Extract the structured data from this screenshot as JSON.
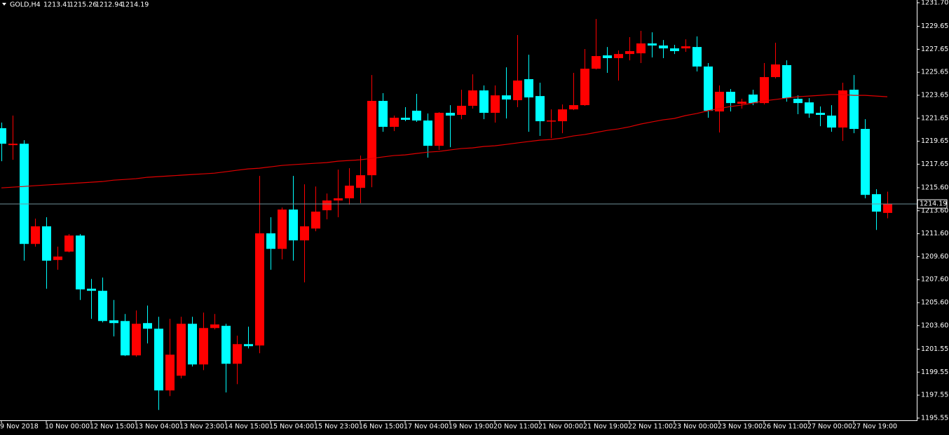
{
  "chart_data": {
    "type": "candlestick",
    "symbol": "GOLD,H4",
    "categories": [
      "9 Nov 2018",
      null,
      null,
      null,
      "10 Nov 00:00",
      null,
      null,
      null,
      "12 Nov 15:00",
      null,
      null,
      null,
      "13 Nov 04:00",
      null,
      null,
      null,
      "13 Nov 23:00",
      null,
      null,
      null,
      "14 Nov 15:00",
      null,
      null,
      null,
      "15 Nov 04:00",
      null,
      null,
      null,
      "15 Nov 23:00",
      null,
      null,
      null,
      "16 Nov 15:00",
      null,
      null,
      null,
      "17 Nov 04:00",
      null,
      null,
      null,
      "19 Nov 19:00",
      null,
      null,
      null,
      "20 Nov 11:00",
      null,
      null,
      null,
      "21 Nov 00:00",
      null,
      null,
      null,
      "21 Nov 19:00",
      null,
      null,
      null,
      "22 Nov 11:00",
      null,
      null,
      null,
      "23 Nov 00:00",
      null,
      null,
      null,
      "23 Nov 19:00",
      null,
      null,
      null,
      "26 Nov 11:00",
      null,
      null,
      null,
      "27 Nov 00:00",
      null,
      null,
      null,
      "27 Nov 19:00",
      null,
      null,
      null
    ],
    "open": [
      1220.78,
      1219.31,
      1219.43,
      1210.71,
      1212.24,
      1209.31,
      1210.04,
      1211.44,
      1206.81,
      1206.63,
      1204.06,
      1204.0,
      1201.01,
      1203.82,
      1203.33,
      1197.96,
      1199.24,
      1203.76,
      1200.22,
      1203.39,
      1203.58,
      1200.28,
      1201.99,
      1201.87,
      1211.63,
      1210.28,
      1213.7,
      1211.02,
      1212.05,
      1213.64,
      1214.49,
      1214.68,
      1215.59,
      1216.69,
      1223.16,
      1220.9,
      1221.69,
      1222.3,
      1221.45,
      1219.25,
      1222.12,
      1221.94,
      1222.73,
      1224.07,
      1222.12,
      1223.64,
      1223.22,
      1225.05,
      1223.58,
      1221.39,
      1221.39,
      1222.42,
      1222.79,
      1225.96,
      1227.12,
      1226.88,
      1227.24,
      1227.3,
      1228.16,
      1227.98,
      1227.73,
      1227.73,
      1227.85,
      1226.15,
      1222.24,
      1223.95,
      1222.91,
      1223.71,
      1222.97,
      1225.23,
      1226.27,
      1223.34,
      1223.03,
      1222.12,
      1221.88,
      1220.84,
      1224.13,
      1220.72,
      1215.04,
      1213.41
    ],
    "high": [
      1221.27,
      1221.88,
      1219.74,
      1212.91,
      1213.03,
      1210.47,
      1211.57,
      1211.57,
      1207.66,
      1207.78,
      1205.83,
      1204.61,
      1204.92,
      1205.34,
      1204.37,
      1204.19,
      1204.37,
      1204.37,
      1204.73,
      1204.61,
      1203.76,
      1202.72,
      1203.51,
      1216.63,
      1213.03,
      1213.88,
      1216.63,
      1215.9,
      1215.71,
      1215.1,
      1217.18,
      1217.3,
      1218.4,
      1225.41,
      1223.83,
      1221.88,
      1222.61,
      1223.77,
      1222.06,
      1222.18,
      1222.79,
      1224.13,
      1225.47,
      1224.5,
      1224.5,
      1226.08,
      1228.89,
      1227.18,
      1224.74,
      1222.42,
      1222.85,
      1225.6,
      1227.67,
      1230.29,
      1227.85,
      1227.55,
      1228.71,
      1229.26,
      1229.13,
      1228.46,
      1228.04,
      1228.52,
      1228.77,
      1226.45,
      1224.5,
      1224.19,
      1223.34,
      1224.13,
      1226.45,
      1228.22,
      1226.69,
      1223.64,
      1223.4,
      1222.67,
      1222.79,
      1224.74,
      1225.41,
      1221.57,
      1215.47,
      1215.26
    ],
    "low": [
      1217.91,
      1218.03,
      1209.25,
      1210.47,
      1206.81,
      1208.46,
      1209.98,
      1205.83,
      1204.19,
      1203.88,
      1202.66,
      1200.95,
      1200.89,
      1202.05,
      1196.26,
      1197.47,
      1199.0,
      1200.04,
      1199.73,
      1203.27,
      1197.78,
      1198.51,
      1201.62,
      1201.2,
      1208.46,
      1209.37,
      1209.25,
      1207.36,
      1211.81,
      1212.85,
      1213.03,
      1214.13,
      1214.25,
      1215.65,
      1220.47,
      1220.53,
      1221.39,
      1221.33,
      1218.22,
      1218.89,
      1219.13,
      1221.57,
      1222.49,
      1221.57,
      1221.27,
      1221.63,
      1222.61,
      1220.47,
      1220.11,
      1219.92,
      1220.35,
      1222.36,
      1222.73,
      1225.9,
      1225.6,
      1224.93,
      1226.69,
      1226.45,
      1226.94,
      1226.88,
      1227.24,
      1227.43,
      1225.72,
      1221.69,
      1220.41,
      1222.24,
      1222.49,
      1222.79,
      1222.85,
      1225.11,
      1223.09,
      1222.0,
      1221.69,
      1220.96,
      1220.47,
      1219.68,
      1220.35,
      1214.68,
      1211.93,
      1212.94
    ],
    "close": [
      1219.43,
      1219.43,
      1210.71,
      1212.24,
      1209.25,
      1209.61,
      1211.44,
      1206.75,
      1206.63,
      1204.0,
      1203.82,
      1201.01,
      1203.76,
      1203.33,
      1197.96,
      1201.07,
      1203.76,
      1200.22,
      1203.39,
      1203.7,
      1200.28,
      1201.99,
      1201.81,
      1211.63,
      1210.28,
      1213.7,
      1211.02,
      1212.24,
      1213.52,
      1214.49,
      1214.68,
      1215.78,
      1216.69,
      1223.16,
      1220.9,
      1221.69,
      1221.51,
      1221.45,
      1219.25,
      1222.12,
      1221.88,
      1222.73,
      1224.07,
      1222.12,
      1223.64,
      1223.28,
      1224.93,
      1223.46,
      1221.39,
      1221.45,
      1222.42,
      1222.79,
      1225.96,
      1227.06,
      1226.88,
      1227.24,
      1227.49,
      1228.16,
      1227.98,
      1227.73,
      1227.49,
      1227.91,
      1226.15,
      1222.3,
      1223.95,
      1222.97,
      1223.09,
      1222.97,
      1225.23,
      1226.33,
      1223.4,
      1222.97,
      1222.06,
      1221.94,
      1220.84,
      1224.07,
      1220.72,
      1214.98,
      1213.52,
      1214.19
    ],
    "moving_average": {
      "color": "#e00000",
      "values": [
        1215.59,
        1215.65,
        1215.71,
        1215.78,
        1215.84,
        1215.9,
        1215.96,
        1216.02,
        1216.08,
        1216.14,
        1216.26,
        1216.32,
        1216.39,
        1216.51,
        1216.57,
        1216.63,
        1216.69,
        1216.75,
        1216.81,
        1216.87,
        1216.99,
        1217.12,
        1217.24,
        1217.3,
        1217.42,
        1217.54,
        1217.61,
        1217.67,
        1217.73,
        1217.79,
        1217.91,
        1217.97,
        1218.03,
        1218.15,
        1218.28,
        1218.4,
        1218.46,
        1218.58,
        1218.7,
        1218.76,
        1218.89,
        1219.01,
        1219.07,
        1219.19,
        1219.25,
        1219.37,
        1219.5,
        1219.62,
        1219.74,
        1219.8,
        1219.92,
        1220.11,
        1220.23,
        1220.41,
        1220.59,
        1220.72,
        1220.9,
        1221.14,
        1221.33,
        1221.51,
        1221.63,
        1221.88,
        1222.06,
        1222.3,
        1222.49,
        1222.67,
        1222.79,
        1222.97,
        1223.16,
        1223.28,
        1223.4,
        1223.52,
        1223.58,
        1223.64,
        1223.71,
        1223.71,
        1223.64,
        1223.64,
        1223.58,
        1223.52
      ]
    },
    "up_color": "#ff0000",
    "down_color": "#00ffff",
    "price_line_color": "#6f8f99",
    "ylim": [
      1195.36,
      1231.94
    ],
    "yticks": [
      {
        "value": 1231.7,
        "label": "1231.70"
      },
      1229.65,
      1227.65,
      1225.65,
      1223.65,
      1221.65,
      1219.65,
      1217.65,
      {
        "value": 1215.6,
        "label": "1215.60"
      },
      {
        "value": 1213.6,
        "label": "1213.60"
      },
      {
        "value": 1211.6,
        "label": "1211.60"
      },
      {
        "value": 1209.6,
        "label": "1209.60"
      },
      {
        "value": 1207.6,
        "label": "1207.60"
      },
      {
        "value": 1205.6,
        "label": "1205.60"
      },
      {
        "value": 1203.6,
        "label": "1203.60"
      },
      1201.55,
      1199.55,
      1197.55,
      1195.55
    ],
    "grid": false
  }
}
